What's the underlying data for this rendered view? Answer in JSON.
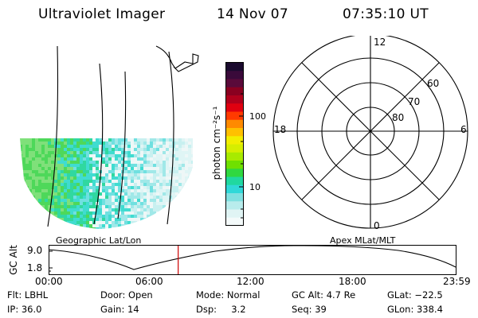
{
  "header": {
    "instrument": "Ultraviolet Imager",
    "date": "14 Nov 07",
    "time": "07:35:10 UT"
  },
  "geo_panel": {
    "label": "Geographic Lat/Lon"
  },
  "polar_panel": {
    "label": "Apex MLat/MLT",
    "mlt_labels": {
      "top": "12",
      "left": "18",
      "right": "6",
      "bottom": "0"
    },
    "mlat_labels": [
      "60",
      "70",
      "80"
    ]
  },
  "colorbar": {
    "unit": "photon cm⁻²s⁻¹",
    "ticks": [
      "100",
      "10"
    ],
    "colors": [
      "#1a0a2e",
      "#3a0a3a",
      "#5a0a3a",
      "#8a0020",
      "#b0001c",
      "#e00010",
      "#ff3a00",
      "#ff8a00",
      "#ffc000",
      "#f2ee00",
      "#d6ee00",
      "#a8ea00",
      "#6fe000",
      "#30d840",
      "#20d8a0",
      "#30d8d8",
      "#80e0e0",
      "#b8ecec",
      "#e0f4f4",
      "#f4fafa"
    ]
  },
  "timeline": {
    "ylabel": "GC Alt",
    "y_ticks": [
      "9.0",
      "1.8"
    ],
    "x_ticks": [
      "00:00",
      "06:00",
      "12:00",
      "18:00",
      "23:59"
    ],
    "marker_fraction": 0.317,
    "marker_color": "#cc0000"
  },
  "info": {
    "flt": "Flt: LBHL",
    "door": "Door: Open",
    "mode": "Mode: Normal",
    "gc_alt": "GC Alt: 4.7 Re",
    "glat": "GLat: −22.5",
    "ip": "IP: 36.0",
    "gain": "Gain: 14",
    "dsp": "Dsp:     3.2",
    "seq": "Seq: 39",
    "glon": "GLon: 338.4"
  }
}
